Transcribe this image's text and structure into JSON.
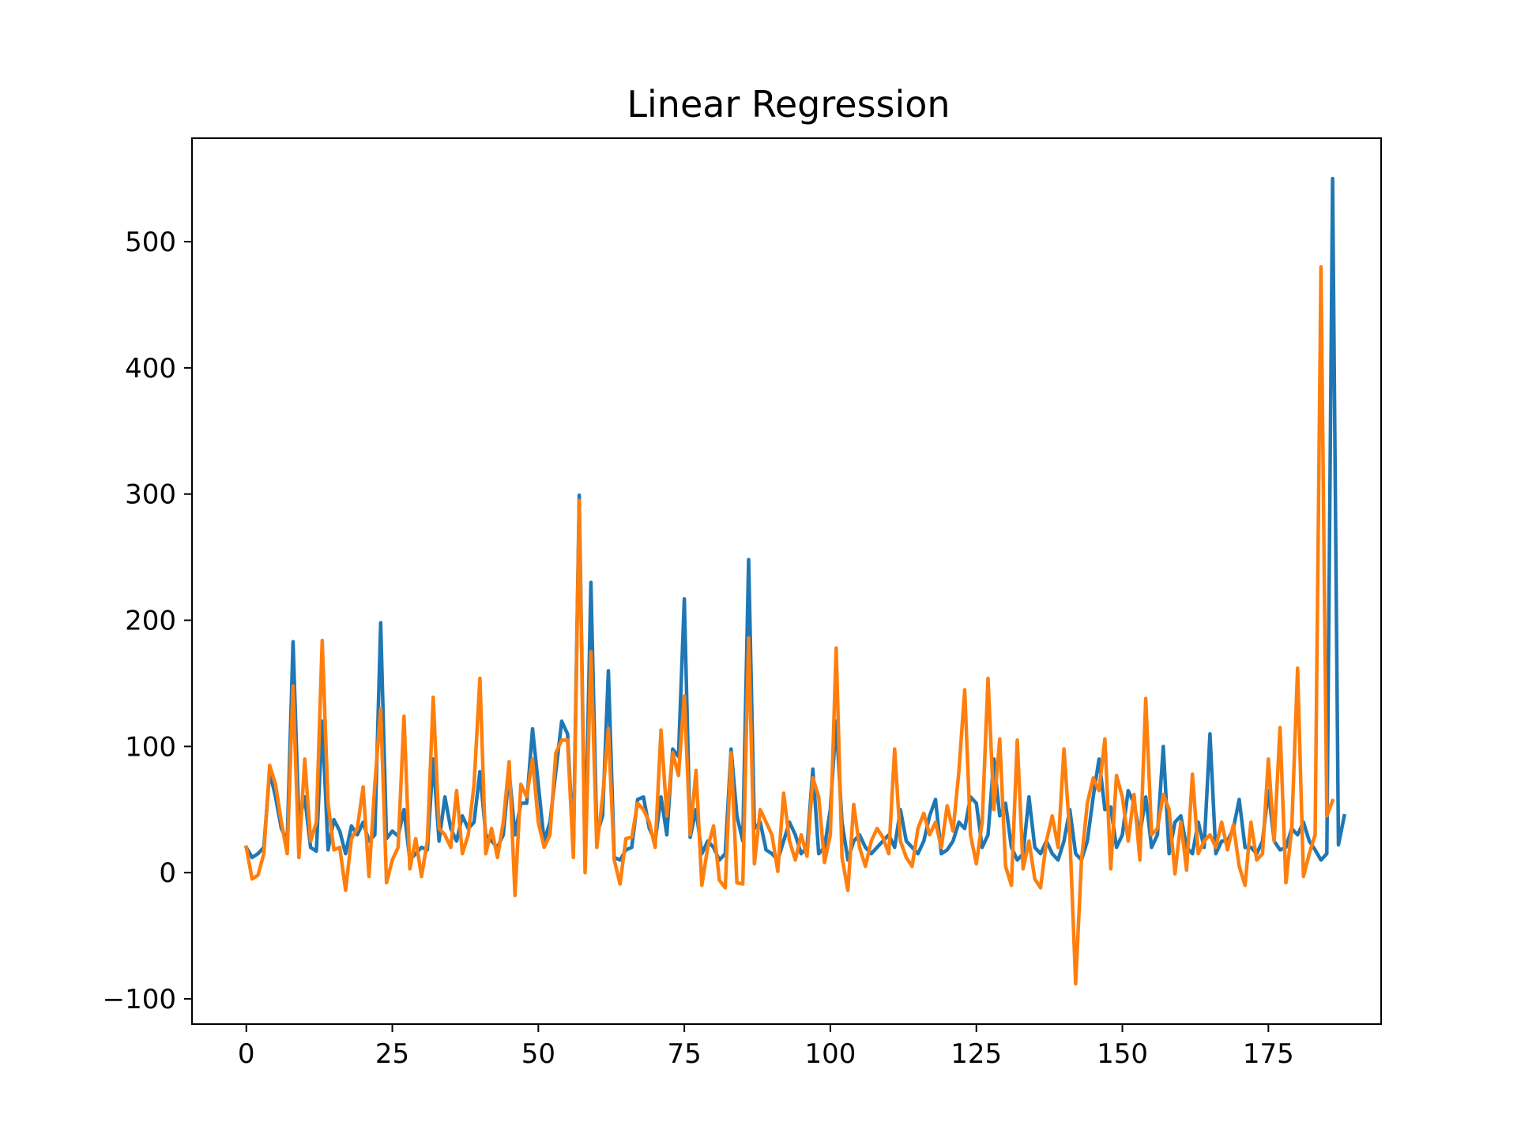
{
  "chart_data": {
    "type": "line",
    "title": "Linear Regression",
    "xlabel": "",
    "ylabel": "",
    "xlim": [
      -9.3,
      194.3
    ],
    "ylim": [
      -120,
      582
    ],
    "x_ticks": [
      0,
      25,
      50,
      75,
      100,
      125,
      150,
      175
    ],
    "y_ticks": [
      -100,
      0,
      100,
      200,
      300,
      400,
      500
    ],
    "x_tick_labels": [
      "0",
      "25",
      "50",
      "75",
      "100",
      "125",
      "150",
      "175"
    ],
    "y_tick_labels": [
      "−100",
      "0",
      "100",
      "200",
      "300",
      "400",
      "500"
    ],
    "grid": false,
    "legend": "none",
    "series": [
      {
        "color": "#1f77b4",
        "values": [
          20,
          12,
          15,
          20,
          80,
          60,
          35,
          25,
          183,
          40,
          60,
          20,
          17,
          120,
          18,
          42,
          33,
          15,
          37,
          30,
          40,
          25,
          30,
          198,
          27,
          33,
          29,
          50,
          10,
          15,
          20,
          18,
          90,
          25,
          60,
          35,
          25,
          45,
          35,
          40,
          80,
          30,
          25,
          20,
          30,
          80,
          30,
          55,
          55,
          114,
          70,
          25,
          40,
          80,
          120,
          110,
          20,
          299,
          10,
          230,
          30,
          45,
          160,
          12,
          10,
          18,
          20,
          58,
          60,
          35,
          25,
          60,
          30,
          98,
          92,
          217,
          28,
          50,
          15,
          25,
          20,
          10,
          15,
          98,
          45,
          25,
          248,
          35,
          40,
          18,
          15,
          10,
          25,
          40,
          30,
          15,
          20,
          82,
          15,
          20,
          50,
          120,
          40,
          10,
          25,
          30,
          20,
          15,
          20,
          25,
          30,
          20,
          50,
          25,
          20,
          15,
          25,
          45,
          58,
          15,
          18,
          25,
          40,
          35,
          60,
          55,
          20,
          30,
          90,
          45,
          55,
          20,
          10,
          15,
          60,
          20,
          15,
          25,
          15,
          10,
          25,
          50,
          15,
          10,
          25,
          60,
          90,
          50,
          52,
          20,
          30,
          65,
          55,
          30,
          60,
          20,
          30,
          100,
          15,
          40,
          45,
          20,
          15,
          40,
          20,
          110,
          15,
          25,
          25,
          35,
          58,
          20,
          20,
          15,
          25,
          65,
          25,
          18,
          20,
          35,
          30,
          40,
          25,
          18,
          10,
          15,
          550,
          22,
          45
        ]
      },
      {
        "color": "#ff7f0e",
        "values": [
          20,
          -5,
          -2,
          15,
          85,
          70,
          40,
          15,
          148,
          12,
          90,
          25,
          40,
          184,
          55,
          18,
          20,
          -14,
          27,
          35,
          68,
          -3,
          70,
          130,
          -8,
          10,
          20,
          124,
          3,
          27,
          -3,
          25,
          139,
          35,
          30,
          20,
          65,
          15,
          30,
          70,
          154,
          15,
          35,
          12,
          40,
          88,
          -18,
          70,
          60,
          90,
          40,
          20,
          30,
          95,
          105,
          105,
          12,
          295,
          0,
          175,
          20,
          60,
          114,
          10,
          -9,
          27,
          28,
          55,
          50,
          40,
          20,
          113,
          45,
          95,
          77,
          140,
          30,
          81,
          -10,
          20,
          37,
          -6,
          -12,
          95,
          -8,
          -9,
          186,
          7,
          50,
          40,
          30,
          1,
          63,
          25,
          10,
          30,
          13,
          75,
          60,
          8,
          30,
          178,
          12,
          -14,
          54,
          20,
          5,
          25,
          35,
          28,
          15,
          98,
          25,
          12,
          5,
          35,
          47,
          30,
          40,
          20,
          53,
          33,
          80,
          145,
          30,
          7,
          40,
          154,
          50,
          106,
          5,
          -10,
          105,
          3,
          25,
          -5,
          -12,
          25,
          45,
          20,
          98,
          30,
          -88,
          10,
          55,
          75,
          65,
          106,
          3,
          77,
          60,
          25,
          62,
          10,
          138,
          30,
          35,
          62,
          50,
          -1,
          40,
          2,
          78,
          15,
          25,
          30,
          20,
          40,
          18,
          38,
          5,
          -10,
          40,
          10,
          15,
          90,
          25,
          115,
          -8,
          35,
          162,
          -3,
          15,
          30,
          480,
          45,
          57
        ]
      }
    ]
  }
}
